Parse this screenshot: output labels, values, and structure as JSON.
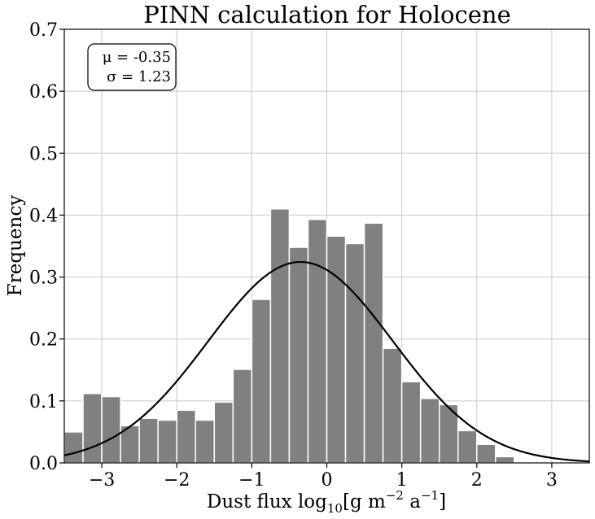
{
  "chart_data": {
    "type": "bar",
    "title": "PINN calculation for Holocene",
    "xlabel": {
      "prefix": "Dust flux log",
      "sub": "10",
      "mid": "[g m",
      "sup1": "−2",
      "mid2": " a",
      "sup2": "−1",
      "suffix": "]"
    },
    "ylabel": "Frequency",
    "xlim": [
      -3.5,
      3.5
    ],
    "ylim": [
      0,
      0.7
    ],
    "xticks": [
      -3,
      -2,
      -1,
      0,
      1,
      2,
      3
    ],
    "xtick_labels": [
      "−3",
      "−2",
      "−1",
      "0",
      "1",
      "2",
      "3"
    ],
    "yticks": [
      0.0,
      0.1,
      0.2,
      0.3,
      0.4,
      0.5,
      0.6,
      0.7
    ],
    "ytick_labels": [
      "0.0",
      "0.1",
      "0.2",
      "0.3",
      "0.4",
      "0.5",
      "0.6",
      "0.7"
    ],
    "grid": true,
    "bin_start": -3.5,
    "bin_width": 0.25,
    "values": [
      0.05,
      0.112,
      0.107,
      0.06,
      0.072,
      0.069,
      0.085,
      0.069,
      0.098,
      0.151,
      0.264,
      0.41,
      0.348,
      0.393,
      0.366,
      0.354,
      0.387,
      0.185,
      0.131,
      0.104,
      0.094,
      0.052,
      0.03,
      0.01
    ],
    "bar_color": "#808080",
    "curve": {
      "type": "normal_pdf",
      "mu": -0.35,
      "sigma": 1.23,
      "color": "#000000"
    },
    "stats_box": {
      "mu_label": "μ = -0.35",
      "sigma_label": "σ = 1.23"
    }
  }
}
